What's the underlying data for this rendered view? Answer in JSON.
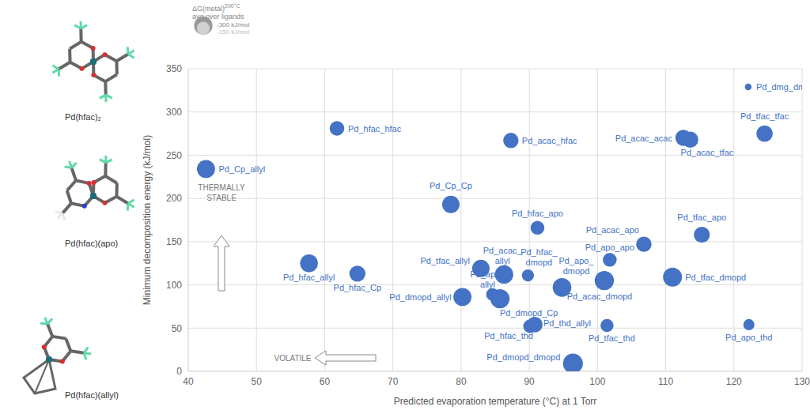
{
  "chart_data": {
    "type": "scatter",
    "x_label": "Predicted evaporation temperature (°C) at 1 Torr",
    "y_label": "Minimum decomposition energy (kJ/mol)",
    "xlim": [
      40,
      130
    ],
    "xticks": [
      40,
      50,
      60,
      70,
      80,
      90,
      100,
      110,
      120,
      130
    ],
    "ylim": [
      0,
      350
    ],
    "yticks": [
      0,
      50,
      100,
      150,
      200,
      250,
      300,
      350
    ],
    "grid": true,
    "color": "#4472c4",
    "marker": "circle",
    "points": [
      {
        "label": "Pd_dmg_dmg",
        "x": 122.1,
        "y": 329,
        "size": -40
      },
      {
        "label": "Pd_tfac_tfac",
        "x": 124.5,
        "y": 275,
        "size": -240
      },
      {
        "label": "Pd_acac_acac",
        "x": 112.6,
        "y": 270,
        "size": -230
      },
      {
        "label": "Pd_acac_tfac",
        "x": 113.6,
        "y": 268,
        "size": -230
      },
      {
        "label": "Pd_hfac_hfac",
        "x": 61.8,
        "y": 281,
        "size": -190
      },
      {
        "label": "Pd_acac_hfac",
        "x": 87.3,
        "y": 267,
        "size": -210
      },
      {
        "label": "Pd_Cp_allyl",
        "x": 42.6,
        "y": 234,
        "size": -290
      },
      {
        "label": "Pd_Cp_Cp",
        "x": 78.5,
        "y": 193,
        "size": -270
      },
      {
        "label": "Pd_hfac_apo",
        "x": 91.2,
        "y": 166,
        "size": -170
      },
      {
        "label": "Pd_tfac_apo",
        "x": 115.3,
        "y": 158,
        "size": -230
      },
      {
        "label": "Pd_acac_apo",
        "x": 106.8,
        "y": 147,
        "size": -210
      },
      {
        "label": "Pd_apo_apo",
        "x": 101.8,
        "y": 129,
        "size": -170
      },
      {
        "label": "Pd_hfac_allyl",
        "x": 57.7,
        "y": 125,
        "size": -280
      },
      {
        "label": "Pd_hfac_Cp",
        "x": 64.8,
        "y": 113,
        "size": -230
      },
      {
        "label": "Pd_tfac_allyl",
        "x": 82.9,
        "y": 119,
        "size": -270
      },
      {
        "label": "Pd_acac_allyl",
        "x": 86.3,
        "y": 112,
        "size": -300
      },
      {
        "label": "Pd_hfac_dmopd",
        "x": 89.8,
        "y": 111,
        "size": -130
      },
      {
        "label": "Pd_apo_dmopd",
        "x": 94.8,
        "y": 97,
        "size": -310
      },
      {
        "label": "Pd_acac_dmopd",
        "x": 101.0,
        "y": 105,
        "size": -330
      },
      {
        "label": "Pd_tfac_dmopd",
        "x": 111.0,
        "y": 109,
        "size": -320
      },
      {
        "label": "Pd_apo_allyl",
        "x": 84.6,
        "y": 89,
        "size": -140
      },
      {
        "label": "Pd_dmopd_allyl",
        "x": 80.2,
        "y": 86,
        "size": -290
      },
      {
        "label": "Pd_dmopd_Cp",
        "x": 85.7,
        "y": 84,
        "size": -330
      },
      {
        "label": "Pd_hfac_thd",
        "x": 90.1,
        "y": 52,
        "size": -160
      },
      {
        "label": "Pd_thd_allyl",
        "x": 90.8,
        "y": 54,
        "size": -220
      },
      {
        "label": "Pd_tfac_thd",
        "x": 101.4,
        "y": 53,
        "size": -150
      },
      {
        "label": "Pd_apo_thd",
        "x": 122.2,
        "y": 54,
        "size": -110
      },
      {
        "label": "Pd_dmopd_dmopd",
        "x": 96.4,
        "y": 9,
        "size": -350
      }
    ],
    "size_legend": {
      "title": "ΔG(metal)",
      "title_sup": "200°C",
      "subtitle": "avg over ligands",
      "values": [
        -300,
        -150
      ],
      "labels": [
        "-300 kJ/mol",
        "-150 kJ/mol"
      ]
    },
    "annotations": [
      "THERMALLY STABLE",
      "VOLATILE"
    ],
    "molecules": [
      "Pd(hfac)₂",
      "Pd(hfac)(apo)",
      "Pd(hfac)(allyl)"
    ]
  }
}
